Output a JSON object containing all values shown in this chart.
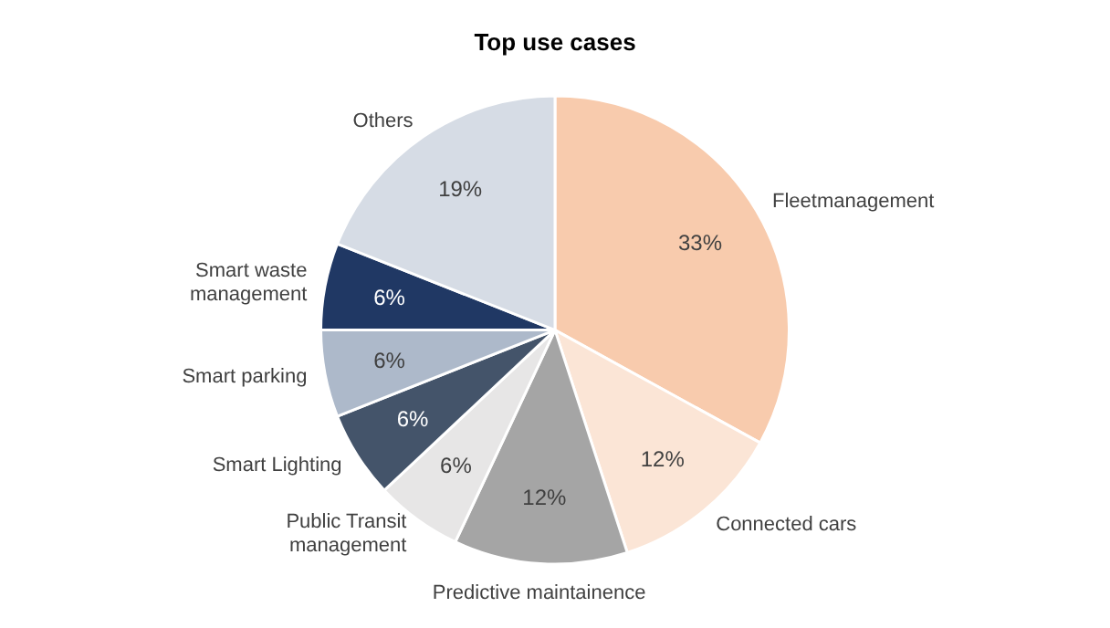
{
  "chart_data": {
    "type": "pie",
    "title": "Top use cases",
    "categories": [
      "Fleetmanagement",
      "Connected cars",
      "Predictive maintainence",
      "Public Transit management",
      "Smart Lighting",
      "Smart parking",
      "Smart waste management",
      "Others"
    ],
    "values": [
      33,
      12,
      12,
      6,
      6,
      6,
      6,
      19
    ],
    "value_labels": [
      "33%",
      "12%",
      "12%",
      "6%",
      "6%",
      "6%",
      "6%",
      "19%"
    ],
    "colors": [
      "#f8cbad",
      "#fbe5d6",
      "#a5a5a5",
      "#e7e6e6",
      "#44546a",
      "#adb9ca",
      "#203864",
      "#d6dce5"
    ],
    "legend": false
  }
}
